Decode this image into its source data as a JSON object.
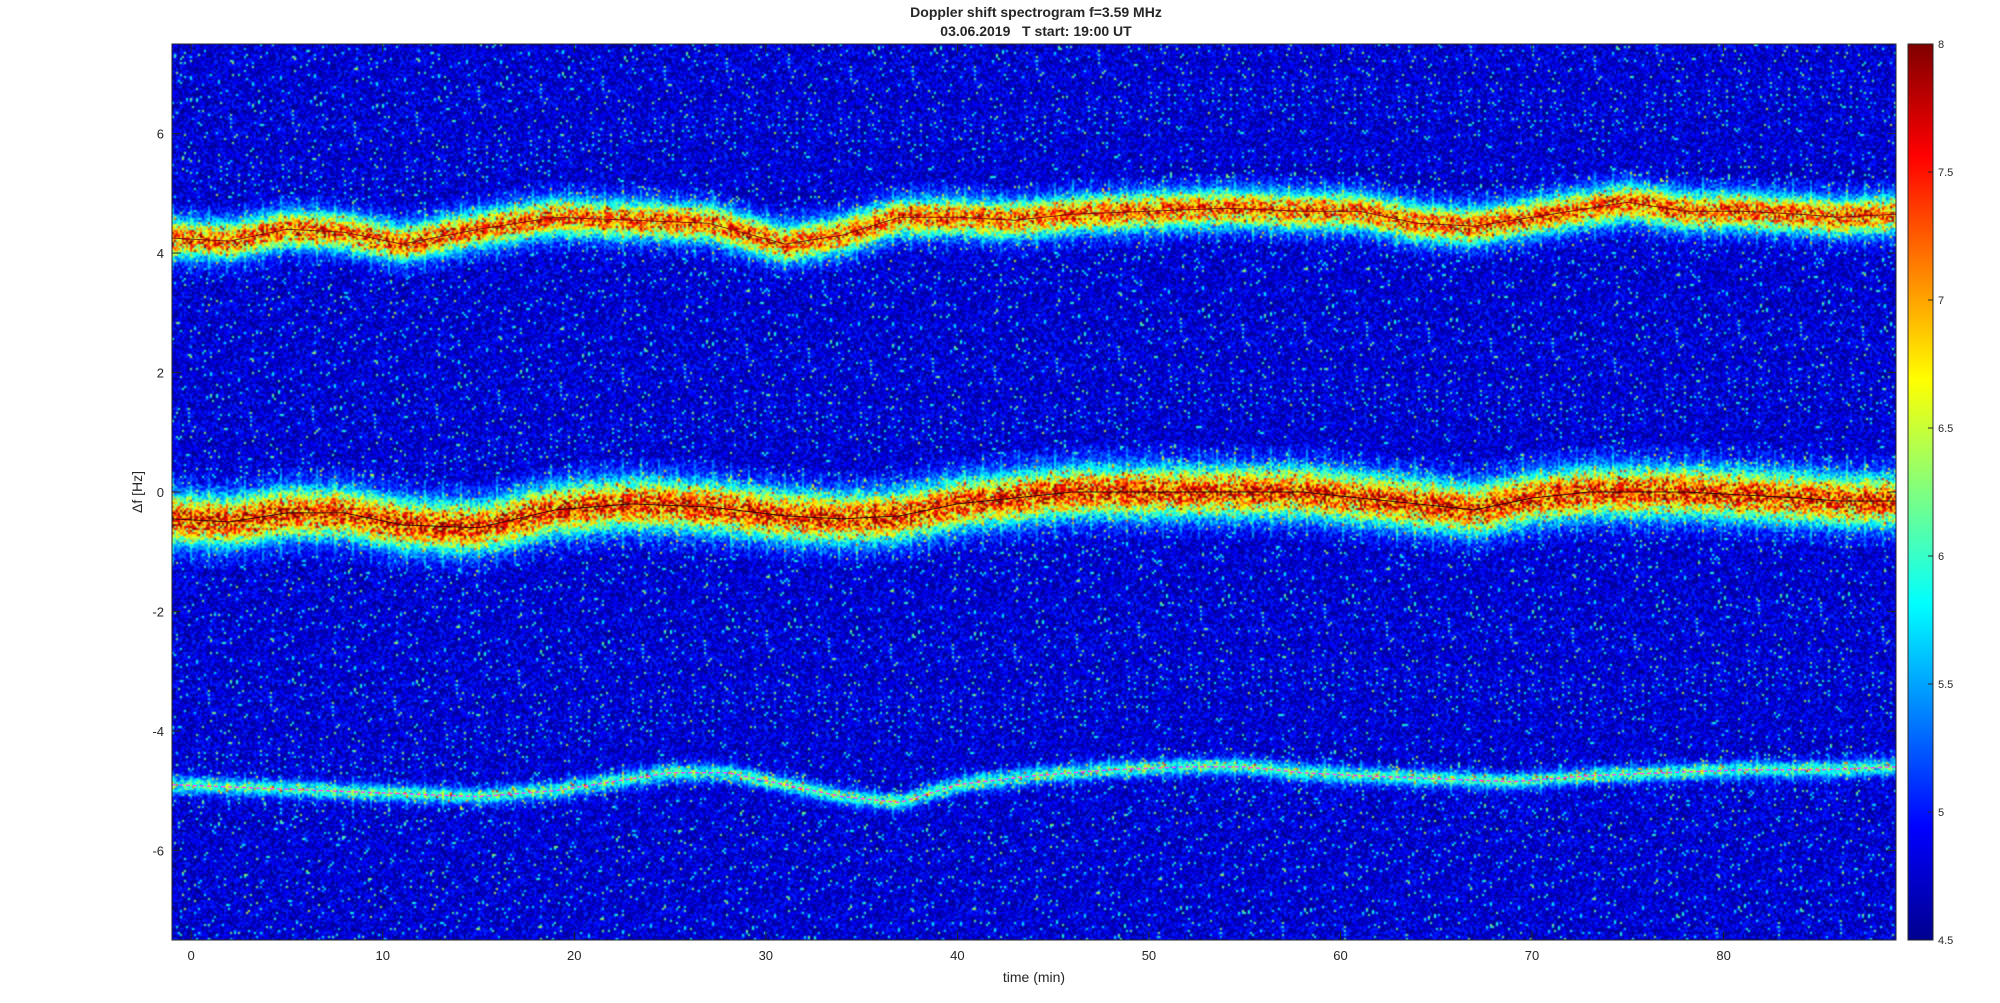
{
  "chart_data": {
    "type": "heatmap",
    "title": "Doppler shift spectrogram f=3.59 MHz",
    "subtitle": "03.06.2019   T start: 19:00 UT",
    "xlabel": "time (min)",
    "ylabel": "Δf [Hz]",
    "xlim": [
      -1,
      89
    ],
    "ylim": [
      -7.5,
      7.5
    ],
    "x_ticks": [
      0,
      10,
      20,
      30,
      40,
      50,
      60,
      70,
      80
    ],
    "y_ticks": [
      6,
      4,
      2,
      0,
      -2,
      -4,
      -6
    ],
    "colormap": "jet",
    "clim": [
      4.5,
      8
    ],
    "colorbar_ticks": [
      "8",
      "7.5",
      "7",
      "6.5",
      "6",
      "5.5",
      "5",
      "4.5"
    ],
    "background_level": 4.8,
    "traces": [
      {
        "x": [
          -1,
          2,
          5,
          8,
          11,
          15,
          19,
          23,
          27,
          31,
          34,
          37,
          40,
          43,
          46,
          50,
          54,
          58,
          61,
          64,
          67,
          70,
          73,
          75,
          78,
          81,
          84,
          86,
          89
        ],
        "y": [
          4.25,
          4.2,
          4.4,
          4.35,
          4.15,
          4.4,
          4.6,
          4.55,
          4.5,
          4.15,
          4.3,
          4.6,
          4.6,
          4.55,
          4.65,
          4.7,
          4.75,
          4.7,
          4.7,
          4.5,
          4.45,
          4.6,
          4.75,
          4.85,
          4.7,
          4.7,
          4.65,
          4.6,
          4.65
        ],
        "intensity": 7.6,
        "spread": 0.45
      },
      {
        "x": [
          -1,
          2,
          5,
          8,
          11,
          15,
          19,
          23,
          27,
          31,
          34,
          37,
          40,
          43,
          46,
          50,
          54,
          58,
          61,
          64,
          67,
          70,
          73,
          75,
          78,
          81,
          84,
          86,
          89
        ],
        "y": [
          -0.45,
          -0.5,
          -0.35,
          -0.35,
          -0.55,
          -0.6,
          -0.3,
          -0.2,
          -0.25,
          -0.4,
          -0.45,
          -0.4,
          -0.2,
          -0.1,
          0.0,
          0.0,
          0.0,
          0.0,
          -0.1,
          -0.2,
          -0.3,
          -0.1,
          0.0,
          0.0,
          0.0,
          -0.05,
          -0.1,
          -0.15,
          -0.15
        ],
        "intensity": 7.8,
        "spread": 0.6
      },
      {
        "x": [
          -1,
          3,
          7,
          11,
          15,
          19,
          22,
          25,
          28,
          31,
          34,
          37,
          40,
          44,
          48,
          52,
          55,
          58,
          61,
          65,
          69,
          73,
          77,
          81,
          85,
          89
        ],
        "y": [
          -4.9,
          -4.95,
          -5.0,
          -5.05,
          -5.1,
          -5.0,
          -4.85,
          -4.7,
          -4.7,
          -4.9,
          -5.1,
          -5.2,
          -4.9,
          -4.75,
          -4.65,
          -4.6,
          -4.6,
          -4.7,
          -4.75,
          -4.8,
          -4.85,
          -4.75,
          -4.7,
          -4.65,
          -4.65,
          -4.6
        ],
        "intensity": 6.2,
        "spread": 0.2
      }
    ]
  }
}
